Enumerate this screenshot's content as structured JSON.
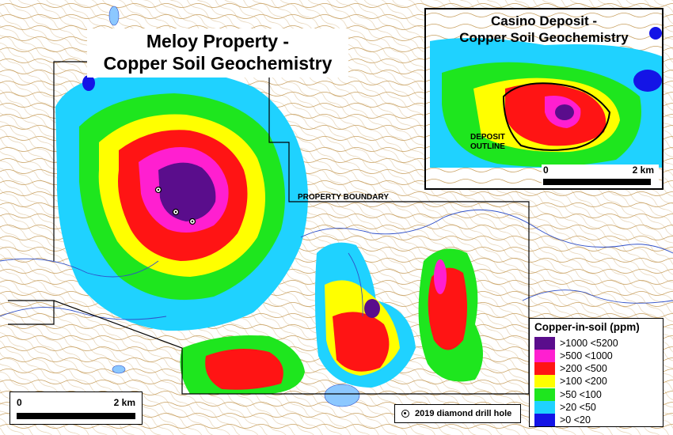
{
  "map": {
    "title_line1": "Meloy Property -",
    "title_line2": "Copper Soil Geochemistry",
    "boundary_label": "PROPERTY BOUNDARY",
    "scale": {
      "start": "0",
      "end": "2 km"
    },
    "drill_legend": {
      "icon": "drill-hole-icon",
      "label": "2019 diamond drill hole"
    }
  },
  "inset": {
    "title_line1": "Casino Deposit -",
    "title_line2": "Copper Soil Geochemistry",
    "deposit_label_line1": "DEPOSIT",
    "deposit_label_line2": "OUTLINE",
    "scale": {
      "start": "0",
      "end": "2 km"
    }
  },
  "legend": {
    "title": "Copper-in-soil (ppm)",
    "items": [
      {
        "label": ">1000 <5200",
        "color": "#5a0d8c"
      },
      {
        "label": ">500 <1000",
        "color": "#ff1fd0"
      },
      {
        "label": ">200 <500",
        "color": "#ff1414"
      },
      {
        "label": ">100 <200",
        "color": "#ffff00"
      },
      {
        "label": ">50 <100",
        "color": "#1ee61e"
      },
      {
        "label": ">20 <50",
        "color": "#1fd2ff"
      },
      {
        "label": ">0 <20",
        "color": "#1414e6"
      }
    ]
  },
  "colors": {
    "contour": "#c8a060",
    "stream": "#3050c8",
    "lake": "#8cc8ff",
    "background": "#ffffff"
  }
}
